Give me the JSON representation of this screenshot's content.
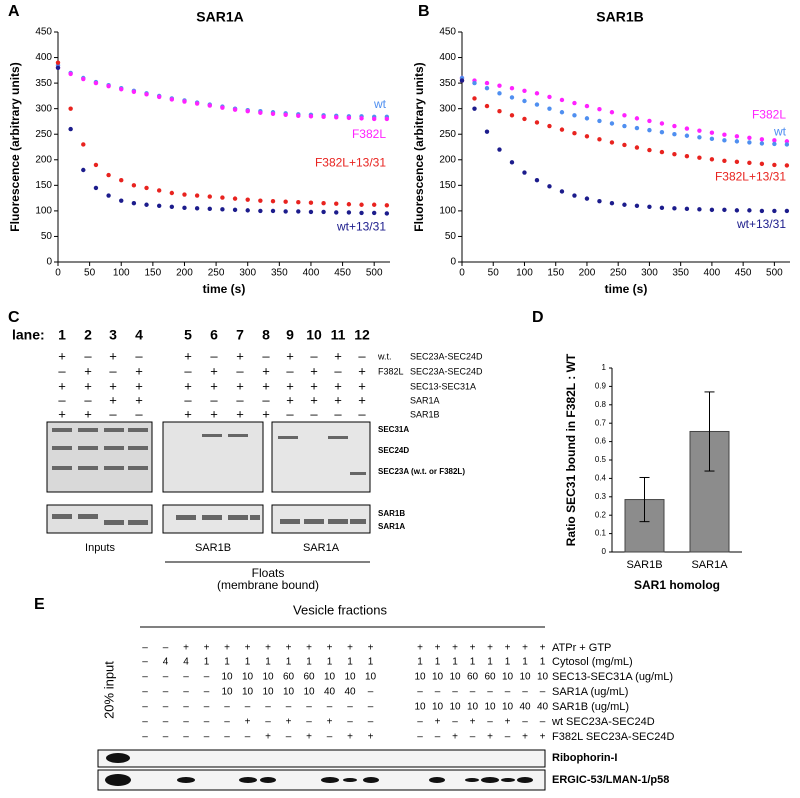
{
  "chart_data": [
    {
      "type": "scatter",
      "label": "A",
      "title": "SAR1A",
      "xlabel": "time (s)",
      "ylabel": "Fluorescence (arbitrary units)",
      "xlim": [
        0,
        525
      ],
      "ylim": [
        0,
        450
      ],
      "xticks": [
        0,
        50,
        100,
        150,
        200,
        250,
        300,
        350,
        400,
        450,
        500
      ],
      "yticks": [
        0,
        50,
        100,
        150,
        200,
        250,
        300,
        350,
        400,
        450
      ],
      "x": [
        0,
        20,
        40,
        60,
        80,
        100,
        120,
        140,
        160,
        180,
        200,
        220,
        240,
        260,
        280,
        300,
        320,
        340,
        360,
        380,
        400,
        420,
        440,
        460,
        480,
        500,
        520
      ],
      "series": [
        {
          "name": "wt",
          "color": "#4f8ff0",
          "values": [
            385,
            370,
            360,
            352,
            346,
            340,
            335,
            330,
            325,
            320,
            316,
            312,
            308,
            304,
            300,
            297,
            295,
            293,
            291,
            289,
            288,
            287,
            286,
            285,
            285,
            284,
            284
          ]
        },
        {
          "name": "F382L",
          "color": "#ff22ff",
          "values": [
            380,
            368,
            358,
            350,
            344,
            338,
            333,
            328,
            323,
            318,
            314,
            310,
            306,
            302,
            298,
            295,
            292,
            290,
            288,
            286,
            285,
            284,
            283,
            282,
            281,
            280,
            280
          ]
        },
        {
          "name": "F382L+13/31",
          "color": "#e8231f",
          "values": [
            390,
            300,
            230,
            190,
            170,
            160,
            150,
            145,
            140,
            135,
            132,
            130,
            128,
            126,
            124,
            122,
            120,
            119,
            118,
            117,
            116,
            115,
            114,
            113,
            112,
            112,
            111
          ]
        },
        {
          "name": "wt+13/31",
          "color": "#1c1c8c",
          "values": [
            380,
            260,
            180,
            145,
            130,
            120,
            115,
            112,
            110,
            108,
            106,
            105,
            104,
            103,
            102,
            101,
            100,
            100,
            99,
            99,
            98,
            98,
            97,
            97,
            96,
            96,
            95
          ]
        }
      ]
    },
    {
      "type": "scatter",
      "label": "B",
      "title": "SAR1B",
      "xlabel": "time (s)",
      "ylabel": "Fluorescence (arbitrary units)",
      "xlim": [
        0,
        525
      ],
      "ylim": [
        0,
        450
      ],
      "xticks": [
        0,
        50,
        100,
        150,
        200,
        250,
        300,
        350,
        400,
        450,
        500
      ],
      "yticks": [
        0,
        50,
        100,
        150,
        200,
        250,
        300,
        350,
        400,
        450
      ],
      "x": [
        0,
        20,
        40,
        60,
        80,
        100,
        120,
        140,
        160,
        180,
        200,
        220,
        240,
        260,
        280,
        300,
        320,
        340,
        360,
        380,
        400,
        420,
        440,
        460,
        480,
        500,
        520
      ],
      "series": [
        {
          "name": "F382L",
          "color": "#ff22ff",
          "values": [
            360,
            355,
            350,
            345,
            340,
            335,
            330,
            323,
            317,
            311,
            305,
            299,
            293,
            287,
            281,
            276,
            271,
            266,
            261,
            257,
            253,
            249,
            246,
            243,
            240,
            238,
            236
          ]
        },
        {
          "name": "wt",
          "color": "#4f8ff0",
          "values": [
            360,
            350,
            340,
            330,
            322,
            315,
            308,
            300,
            293,
            287,
            281,
            276,
            271,
            266,
            262,
            258,
            254,
            250,
            247,
            244,
            241,
            238,
            236,
            234,
            232,
            231,
            230
          ]
        },
        {
          "name": "F382L+13/31",
          "color": "#e8231f",
          "values": [
            355,
            320,
            305,
            295,
            287,
            280,
            273,
            266,
            259,
            252,
            246,
            240,
            234,
            229,
            224,
            219,
            215,
            211,
            207,
            204,
            201,
            198,
            196,
            194,
            192,
            190,
            189
          ]
        },
        {
          "name": "wt+13/31",
          "color": "#1c1c8c",
          "values": [
            355,
            300,
            255,
            220,
            195,
            175,
            160,
            148,
            138,
            130,
            124,
            119,
            115,
            112,
            110,
            108,
            106,
            105,
            104,
            103,
            102,
            102,
            101,
            101,
            100,
            100,
            100
          ]
        }
      ]
    },
    {
      "type": "bar",
      "label": "D",
      "xlabel": "SAR1 homolog",
      "ylabel": "Ratio SEC31 bound in F382L : WT",
      "categories": [
        "SAR1B",
        "SAR1A"
      ],
      "values": [
        0.285,
        0.655
      ],
      "errors": [
        0.12,
        0.215
      ],
      "color": "#8c8c8c",
      "ylim": [
        0,
        1
      ],
      "yticks": [
        0,
        0.1,
        0.2,
        0.3,
        0.4,
        0.5,
        0.6,
        0.7,
        0.8,
        0.9,
        1
      ]
    }
  ],
  "panel_c": {
    "label": "C",
    "lane_label": "lane:",
    "lanes": [
      "1",
      "2",
      "3",
      "4",
      "5",
      "6",
      "7",
      "8",
      "9",
      "10",
      "11",
      "12"
    ],
    "rows": [
      {
        "label": "w.t.",
        "name": "SEC23A-SEC24D",
        "cells": [
          "+",
          "–",
          "+",
          "–",
          "+",
          "–",
          "+",
          "–",
          "+",
          "–",
          "+",
          "–"
        ]
      },
      {
        "label": "F382L",
        "name": "SEC23A-SEC24D",
        "cells": [
          "–",
          "+",
          "–",
          "+",
          "–",
          "+",
          "–",
          "+",
          "–",
          "+",
          "–",
          "+"
        ]
      },
      {
        "name": "SEC13-SEC31A",
        "cells": [
          "+",
          "+",
          "+",
          "+",
          "+",
          "+",
          "+",
          "+",
          "+",
          "+",
          "+",
          "+"
        ]
      },
      {
        "name": "SAR1A",
        "cells": [
          "–",
          "–",
          "+",
          "+",
          "–",
          "–",
          "–",
          "–",
          "+",
          "+",
          "+",
          "+"
        ]
      },
      {
        "name": "SAR1B",
        "cells": [
          "+",
          "+",
          "–",
          "–",
          "+",
          "+",
          "+",
          "+",
          "–",
          "–",
          "–",
          "–"
        ]
      }
    ],
    "gel_labels": [
      "SEC31A",
      "SEC24D",
      "SEC23A (w.t. or F382L)",
      "SAR1B",
      "SAR1A"
    ],
    "group_labels": [
      "Inputs",
      "SAR1B",
      "SAR1A"
    ],
    "floats": "Floats",
    "floats_note": "(membrane bound)"
  },
  "panel_e": {
    "label": "E",
    "header": "Vesicle fractions",
    "input_label": "20% input",
    "rows": [
      {
        "name": "ATPr + GTP",
        "left": [
          "–",
          "–",
          "+",
          "+",
          "+",
          "+",
          "+",
          "+",
          "+",
          "+",
          "+",
          "+"
        ],
        "right": [
          "+",
          "+",
          "+",
          "+",
          "+",
          "+",
          "+",
          "+"
        ]
      },
      {
        "name": "Cytosol (mg/mL)",
        "left": [
          "–",
          "4",
          "4",
          "1",
          "1",
          "1",
          "1",
          "1",
          "1",
          "1",
          "1",
          "1"
        ],
        "right": [
          "1",
          "1",
          "1",
          "1",
          "1",
          "1",
          "1",
          "1"
        ]
      },
      {
        "name": "SEC13-SEC31A (ug/mL)",
        "left": [
          "–",
          "–",
          "–",
          "–",
          "10",
          "10",
          "10",
          "60",
          "60",
          "10",
          "10",
          "10"
        ],
        "right": [
          "10",
          "10",
          "10",
          "60",
          "60",
          "10",
          "10",
          "10"
        ]
      },
      {
        "name": "SAR1A (ug/mL)",
        "left": [
          "–",
          "–",
          "–",
          "–",
          "10",
          "10",
          "10",
          "10",
          "10",
          "40",
          "40",
          "–"
        ],
        "right": [
          "–",
          "–",
          "–",
          "–",
          "–",
          "–",
          "–",
          "–"
        ]
      },
      {
        "name": "SAR1B (ug/mL)",
        "left": [
          "–",
          "–",
          "–",
          "–",
          "–",
          "–",
          "–",
          "–",
          "–",
          "–",
          "–",
          "–"
        ],
        "right": [
          "10",
          "10",
          "10",
          "10",
          "10",
          "10",
          "40",
          "40"
        ]
      },
      {
        "name": "wt SEC23A-SEC24D",
        "left": [
          "–",
          "–",
          "–",
          "–",
          "–",
          "+",
          "–",
          "+",
          "–",
          "+",
          "–",
          "–"
        ],
        "right": [
          "–",
          "+",
          "–",
          "+",
          "–",
          "+",
          "–",
          "–"
        ]
      },
      {
        "name": "F382L SEC23A-SEC24D",
        "left": [
          "–",
          "–",
          "–",
          "–",
          "–",
          "–",
          "+",
          "–",
          "+",
          "–",
          "+",
          "+"
        ],
        "right": [
          "–",
          "–",
          "+",
          "–",
          "+",
          "–",
          "+",
          "+"
        ]
      }
    ],
    "blot_labels": [
      "Ribophorin-I",
      "ERGIC-53/LMAN-1/p58"
    ]
  }
}
